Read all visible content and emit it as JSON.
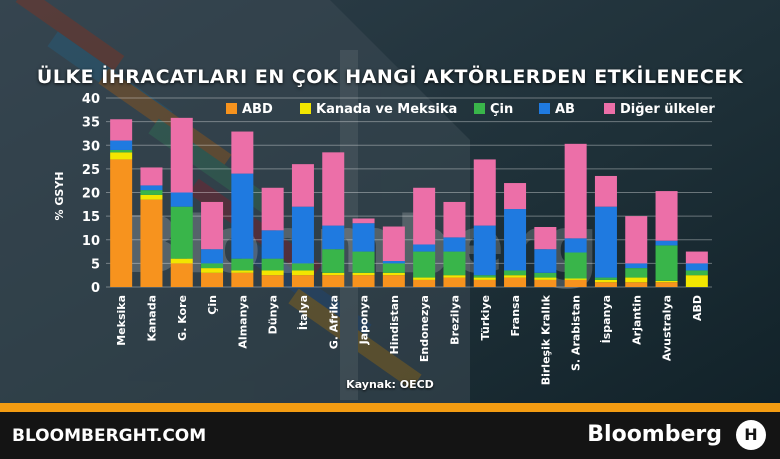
{
  "footer": {
    "site": "BLOOMBERGHT.COM",
    "brand": "Bloomberg",
    "logo_text": "H"
  },
  "source": "Kaynak: OECD",
  "colors": {
    "ABD": "#f7931e",
    "Kanada ve Meksika": "#f2e600",
    "Çin": "#39b54a",
    "AB": "#1f7ae0",
    "Diğer ülkeler": "#ec6fa8"
  },
  "chart_data": {
    "type": "bar",
    "stacked": true,
    "title": "ÜLKE İHRACATLARI EN ÇOK HANGİ AKTÖRLERDEN ETKİLENECEK",
    "ylabel": "% GSYH",
    "xlabel": "",
    "ylim": [
      0,
      40
    ],
    "yticks": [
      0,
      5,
      10,
      15,
      20,
      25,
      30,
      35,
      40
    ],
    "grid": true,
    "legend_position": "top",
    "categories": [
      "Meksika",
      "Kanada",
      "G. Kore",
      "Çin",
      "Almanya",
      "Dünya",
      "İtalya",
      "G. Afrika",
      "Japonya",
      "Hindistan",
      "Endonezya",
      "Brezilya",
      "Türkiye",
      "Fransa",
      "Birleşik Krallık",
      "S. Arabistan",
      "İspanya",
      "Arjantin",
      "Avustralya",
      "ABD"
    ],
    "series": [
      {
        "name": "ABD",
        "values": [
          27,
          18.5,
          5,
          3,
          3,
          2.5,
          2.5,
          2.5,
          2.5,
          2.5,
          1.5,
          2,
          1.5,
          2,
          1.5,
          1.5,
          1,
          1,
          1,
          0
        ]
      },
      {
        "name": "Kanada ve Meksika",
        "values": [
          1.5,
          1,
          1,
          1,
          0.5,
          1,
          1,
          0.5,
          0.5,
          0.5,
          0.5,
          0.5,
          0.5,
          0.5,
          0.5,
          0.3,
          0.5,
          1,
          0.3,
          2.5
        ]
      },
      {
        "name": "Çin",
        "values": [
          0.5,
          1,
          11,
          1,
          2.5,
          2.5,
          1.5,
          5,
          4.5,
          2,
          5.5,
          5,
          0.5,
          1,
          1,
          5.5,
          0.5,
          2,
          7.5,
          1
        ]
      },
      {
        "name": "AB",
        "values": [
          2,
          1,
          3,
          3,
          18,
          6,
          12,
          5,
          6,
          0.5,
          1.5,
          3,
          10.5,
          13,
          5,
          3,
          15,
          1,
          1,
          1.5
        ]
      },
      {
        "name": "Diğer ülkeler",
        "values": [
          4.5,
          3.8,
          15.8,
          10,
          8.9,
          9,
          9,
          15.5,
          1,
          7.3,
          12,
          7.5,
          14,
          5.5,
          4.7,
          20,
          6.5,
          10,
          10.5,
          2.5
        ]
      }
    ]
  }
}
